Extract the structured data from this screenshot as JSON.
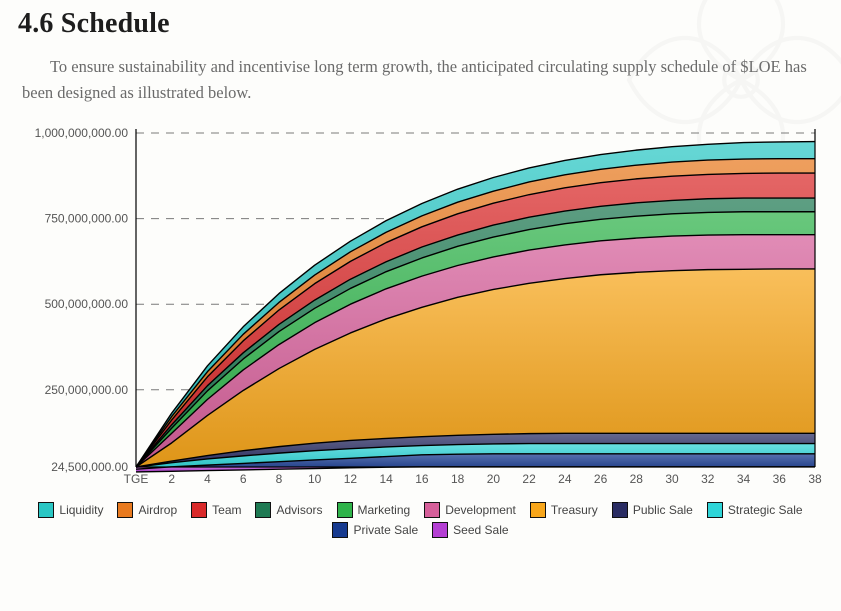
{
  "heading": {
    "title": "4.6 Schedule",
    "title_fontsize": 28
  },
  "paragraph": "To ensure sustainability and incentivise long term growth, the anticipated circulating supply schedule of $LOE has been designed as illustrated below.",
  "chart": {
    "type": "area",
    "background_color": "#fdfdfb",
    "x": {
      "categories": [
        "TGE",
        "2",
        "4",
        "6",
        "8",
        "10",
        "12",
        "14",
        "16",
        "18",
        "20",
        "22",
        "24",
        "26",
        "28",
        "30",
        "32",
        "34",
        "36",
        "38"
      ],
      "label_fontsize": 12
    },
    "y": {
      "min": 24500000,
      "max": 1000000000,
      "ticks": [
        24500000,
        250000000,
        500000000,
        750000000,
        1000000000
      ],
      "tick_labels": [
        "24,500,000.00",
        "250,000,000.00",
        "500,000,000.00",
        "750,000,000.00",
        "1,000,000,000.00"
      ],
      "label_fontsize": 12
    },
    "grid": {
      "dash": "8 7",
      "color": "#7a7a7a"
    },
    "axis_color": "#000000",
    "series_stroke_color": "#000000",
    "series_stroke_width": 1.4,
    "series": [
      {
        "name": "Seed Sale",
        "color": "#b43fd3",
        "top_share": [
          0.01,
          0.012,
          0.014,
          0.016,
          0.018,
          0.02,
          0.022,
          0.024,
          0.025,
          0.025,
          0.025,
          0.025,
          0.025,
          0.025,
          0.025,
          0.025,
          0.025,
          0.025,
          0.025,
          0.025
        ]
      },
      {
        "name": "Private Sale",
        "color": "#173a8f",
        "top_share": [
          0.018,
          0.025,
          0.03,
          0.035,
          0.04,
          0.045,
          0.05,
          0.055,
          0.06,
          0.062,
          0.063,
          0.063,
          0.063,
          0.063,
          0.063,
          0.063,
          0.063,
          0.063,
          0.063,
          0.063
        ]
      },
      {
        "name": "Strategic Sale",
        "color": "#2fd5d8",
        "top_share": [
          0.024,
          0.037,
          0.048,
          0.057,
          0.065,
          0.072,
          0.078,
          0.083,
          0.087,
          0.09,
          0.092,
          0.093,
          0.093,
          0.093,
          0.093,
          0.093,
          0.093,
          0.093,
          0.093,
          0.093
        ]
      },
      {
        "name": "Public Sale",
        "color": "#2a2d63",
        "top_share": [
          0.0245,
          0.042,
          0.058,
          0.072,
          0.084,
          0.094,
          0.102,
          0.108,
          0.113,
          0.117,
          0.12,
          0.122,
          0.123,
          0.123,
          0.123,
          0.123,
          0.123,
          0.123,
          0.123,
          0.123
        ]
      },
      {
        "name": "Treasury",
        "color": "#f7a61b",
        "top_share": [
          0.0245,
          0.095,
          0.175,
          0.248,
          0.312,
          0.368,
          0.416,
          0.457,
          0.491,
          0.52,
          0.543,
          0.561,
          0.575,
          0.586,
          0.593,
          0.598,
          0.601,
          0.602,
          0.603,
          0.603
        ]
      },
      {
        "name": "Development",
        "color": "#d65f9a",
        "top_share": [
          0.0245,
          0.123,
          0.222,
          0.308,
          0.382,
          0.446,
          0.5,
          0.545,
          0.582,
          0.613,
          0.638,
          0.658,
          0.673,
          0.685,
          0.693,
          0.699,
          0.702,
          0.703,
          0.703,
          0.703
        ]
      },
      {
        "name": "Marketing",
        "color": "#2fb34a",
        "top_share": [
          0.0245,
          0.138,
          0.247,
          0.34,
          0.42,
          0.488,
          0.546,
          0.595,
          0.635,
          0.669,
          0.696,
          0.718,
          0.735,
          0.748,
          0.757,
          0.764,
          0.768,
          0.77,
          0.77,
          0.77
        ]
      },
      {
        "name": "Advisors",
        "color": "#1f7a53",
        "top_share": [
          0.0245,
          0.148,
          0.262,
          0.358,
          0.441,
          0.512,
          0.573,
          0.624,
          0.667,
          0.702,
          0.731,
          0.754,
          0.772,
          0.786,
          0.796,
          0.803,
          0.808,
          0.81,
          0.81,
          0.81
        ]
      },
      {
        "name": "Team",
        "color": "#d92a2a",
        "top_share": [
          0.0245,
          0.162,
          0.288,
          0.393,
          0.483,
          0.56,
          0.625,
          0.68,
          0.726,
          0.764,
          0.795,
          0.82,
          0.84,
          0.855,
          0.866,
          0.874,
          0.879,
          0.882,
          0.883,
          0.883
        ]
      },
      {
        "name": "Airdrop",
        "color": "#e87a1f",
        "top_share": [
          0.0245,
          0.172,
          0.303,
          0.412,
          0.505,
          0.585,
          0.653,
          0.71,
          0.758,
          0.798,
          0.83,
          0.857,
          0.878,
          0.894,
          0.906,
          0.915,
          0.921,
          0.924,
          0.925,
          0.925
        ]
      },
      {
        "name": "Liquidity",
        "color": "#2ac7c4",
        "top_share": [
          0.0245,
          0.182,
          0.32,
          0.434,
          0.531,
          0.614,
          0.684,
          0.744,
          0.794,
          0.836,
          0.87,
          0.898,
          0.92,
          0.937,
          0.95,
          0.96,
          0.967,
          0.972,
          0.974,
          0.975
        ]
      }
    ],
    "legend": [
      {
        "name": "Liquidity",
        "color": "#2ac7c4"
      },
      {
        "name": "Airdrop",
        "color": "#e87a1f"
      },
      {
        "name": "Team",
        "color": "#d92a2a"
      },
      {
        "name": "Advisors",
        "color": "#1f7a53"
      },
      {
        "name": "Marketing",
        "color": "#2fb34a"
      },
      {
        "name": "Development",
        "color": "#d65f9a"
      },
      {
        "name": "Treasury",
        "color": "#f7a61b"
      },
      {
        "name": "Public Sale",
        "color": "#2a2d63"
      },
      {
        "name": "Strategic Sale",
        "color": "#2fd5d8"
      },
      {
        "name": "Private Sale",
        "color": "#173a8f"
      },
      {
        "name": "Seed Sale",
        "color": "#b43fd3"
      }
    ]
  }
}
